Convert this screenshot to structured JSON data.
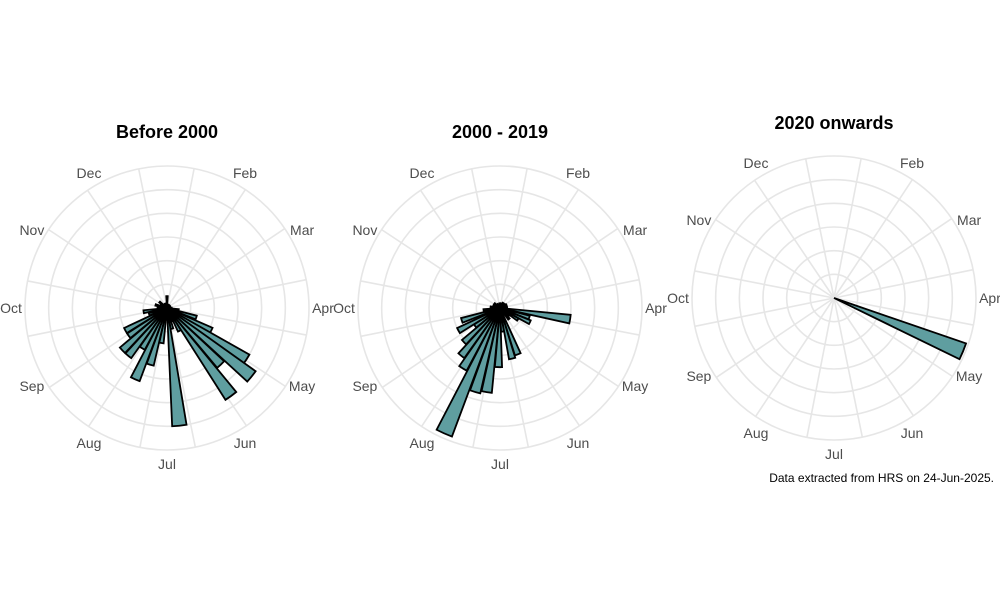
{
  "caption": "Data extracted from HRS on 24-Jun-2025.",
  "colors": {
    "bar_fill": "#5f9ea0",
    "bar_stroke": "#000000",
    "grid": "#e6e6e6",
    "month_text": "#4d4d4d",
    "title_text": "#000000"
  },
  "chart_data": [
    {
      "type": "bar",
      "projection": "polar",
      "title": "Before 2000",
      "axis_labels": [
        "Dec",
        "Feb",
        "Mar",
        "Apr",
        "May",
        "Jun",
        "Jul",
        "Aug",
        "Sep",
        "Oct",
        "Nov"
      ],
      "grid": true,
      "rlim": [
        0,
        6
      ],
      "bars": [
        {
          "month": 0.0,
          "value": 0.5
        },
        {
          "month": 0.5,
          "value": 0.15
        },
        {
          "month": 1.0,
          "value": 0.15
        },
        {
          "month": 1.5,
          "value": 0.15
        },
        {
          "month": 2.0,
          "value": 0.15
        },
        {
          "month": 2.5,
          "value": 0.15
        },
        {
          "month": 3.0,
          "value": 0.2
        },
        {
          "month": 3.3,
          "value": 0.5
        },
        {
          "month": 3.6,
          "value": 1.3
        },
        {
          "month": 3.9,
          "value": 2.1
        },
        {
          "month": 4.1,
          "value": 4.0
        },
        {
          "month": 4.3,
          "value": 4.6
        },
        {
          "month": 4.55,
          "value": 3.3
        },
        {
          "month": 4.8,
          "value": 4.6
        },
        {
          "month": 5.05,
          "value": 1.1
        },
        {
          "month": 5.3,
          "value": 0.6
        },
        {
          "month": 5.55,
          "value": 0.9
        },
        {
          "month": 5.8,
          "value": 5.0
        },
        {
          "month": 6.05,
          "value": 0.5
        },
        {
          "month": 6.3,
          "value": 1.5
        },
        {
          "month": 6.55,
          "value": 2.5
        },
        {
          "month": 6.8,
          "value": 3.3
        },
        {
          "month": 7.05,
          "value": 2.0
        },
        {
          "month": 7.3,
          "value": 2.6
        },
        {
          "month": 7.55,
          "value": 2.6
        },
        {
          "month": 7.8,
          "value": 2.0
        },
        {
          "month": 8.05,
          "value": 2.0
        },
        {
          "month": 8.35,
          "value": 0.8
        },
        {
          "month": 8.7,
          "value": 1.0
        },
        {
          "month": 9.1,
          "value": 0.4
        },
        {
          "month": 9.5,
          "value": 0.5
        },
        {
          "month": 9.9,
          "value": 0.3
        },
        {
          "month": 10.3,
          "value": 0.4
        },
        {
          "month": 10.8,
          "value": 0.2
        },
        {
          "month": 11.4,
          "value": 0.2
        }
      ]
    },
    {
      "type": "bar",
      "projection": "polar",
      "title": "2000 - 2019",
      "axis_labels": [
        "Dec",
        "Feb",
        "Mar",
        "Apr",
        "May",
        "Jun",
        "Jul",
        "Aug",
        "Sep",
        "Oct",
        "Nov"
      ],
      "grid": true,
      "rlim": [
        0,
        6
      ],
      "bars": [
        {
          "month": 0.0,
          "value": 0.2
        },
        {
          "month": 0.5,
          "value": 0.2
        },
        {
          "month": 1.0,
          "value": 0.25
        },
        {
          "month": 1.5,
          "value": 0.25
        },
        {
          "month": 2.0,
          "value": 0.3
        },
        {
          "month": 2.5,
          "value": 0.3
        },
        {
          "month": 3.0,
          "value": 0.3
        },
        {
          "month": 3.3,
          "value": 3.0
        },
        {
          "month": 3.6,
          "value": 1.3
        },
        {
          "month": 3.85,
          "value": 1.4
        },
        {
          "month": 4.1,
          "value": 0.9
        },
        {
          "month": 4.4,
          "value": 0.5
        },
        {
          "month": 4.7,
          "value": 0.6
        },
        {
          "month": 5.0,
          "value": 0.3
        },
        {
          "month": 5.3,
          "value": 2.1
        },
        {
          "month": 5.55,
          "value": 2.2
        },
        {
          "month": 5.8,
          "value": 1.0
        },
        {
          "month": 6.05,
          "value": 2.5
        },
        {
          "month": 6.3,
          "value": 3.6
        },
        {
          "month": 6.55,
          "value": 3.7
        },
        {
          "month": 6.8,
          "value": 5.8
        },
        {
          "month": 7.05,
          "value": 3.0
        },
        {
          "month": 7.3,
          "value": 2.6
        },
        {
          "month": 7.55,
          "value": 2.1
        },
        {
          "month": 7.8,
          "value": 1.3
        },
        {
          "month": 8.05,
          "value": 2.0
        },
        {
          "month": 8.4,
          "value": 1.7
        },
        {
          "month": 8.75,
          "value": 0.7
        },
        {
          "month": 9.2,
          "value": 0.4
        },
        {
          "month": 9.7,
          "value": 0.3
        },
        {
          "month": 10.3,
          "value": 0.3
        },
        {
          "month": 11.0,
          "value": 0.2
        }
      ]
    },
    {
      "type": "bar",
      "projection": "polar",
      "title": "2020 onwards",
      "axis_labels": [
        "Dec",
        "Feb",
        "Mar",
        "Apr",
        "May",
        "Jun",
        "Jul",
        "Aug",
        "Sep",
        "Oct",
        "Nov"
      ],
      "grid": true,
      "rlim": [
        0,
        6
      ],
      "bars": [
        {
          "month": 3.75,
          "value": 5.9
        }
      ]
    }
  ]
}
